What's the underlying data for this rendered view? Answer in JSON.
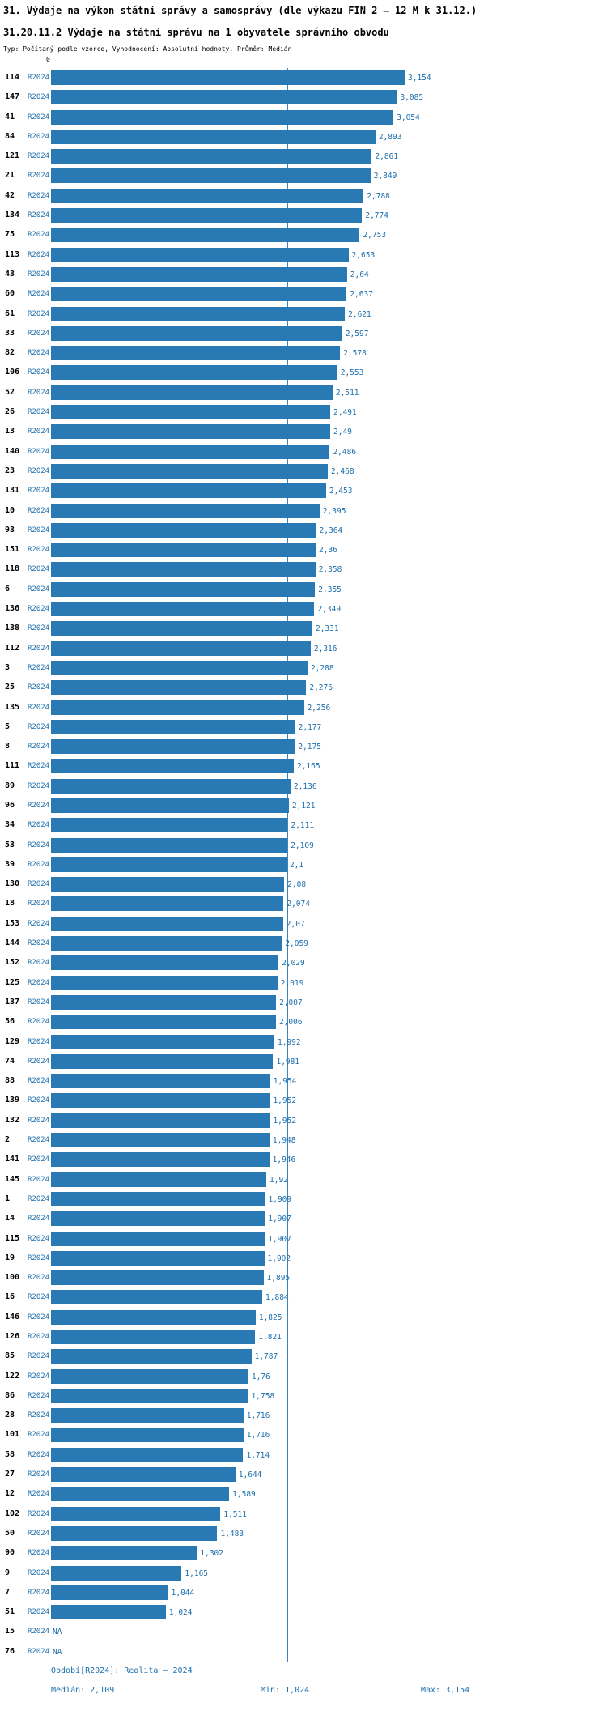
{
  "title": "31. Výdaje na výkon státní správy a samosprávy (dle výkazu FIN 2 – 12 M k 31.12.)",
  "subtitle": "31.20.11.2 Výdaje na státní správu na 1 obyvatele správního obvodu",
  "meta": "Typ: Počítaný podle vzorce, Vyhodnocení: Absolutní hodnoty, Průměr: Medián",
  "axis": {
    "zero_label": "0"
  },
  "colors": {
    "bar": "#2979b5",
    "accent_text": "#1c6fae",
    "median_line": "#3c84bd"
  },
  "chart_data": {
    "type": "bar",
    "orientation": "horizontal",
    "series_label": "R2024",
    "bar_color": "#2979b5",
    "median": 2.109,
    "min": 1.024,
    "max": 3.154,
    "xlim": [
      0,
      3.154
    ],
    "grid": false,
    "legend": "none",
    "rows": [
      {
        "id": "114",
        "value": "3,154"
      },
      {
        "id": "147",
        "value": "3,085"
      },
      {
        "id": "41",
        "value": "3,054"
      },
      {
        "id": "84",
        "value": "2,893"
      },
      {
        "id": "121",
        "value": "2,861"
      },
      {
        "id": "21",
        "value": "2,849"
      },
      {
        "id": "42",
        "value": "2,788"
      },
      {
        "id": "134",
        "value": "2,774"
      },
      {
        "id": "75",
        "value": "2,753"
      },
      {
        "id": "113",
        "value": "2,653"
      },
      {
        "id": "43",
        "value": "2,64"
      },
      {
        "id": "60",
        "value": "2,637"
      },
      {
        "id": "61",
        "value": "2,621"
      },
      {
        "id": "33",
        "value": "2,597"
      },
      {
        "id": "82",
        "value": "2,578"
      },
      {
        "id": "106",
        "value": "2,553"
      },
      {
        "id": "52",
        "value": "2,511"
      },
      {
        "id": "26",
        "value": "2,491"
      },
      {
        "id": "13",
        "value": "2,49"
      },
      {
        "id": "140",
        "value": "2,486"
      },
      {
        "id": "23",
        "value": "2,468"
      },
      {
        "id": "131",
        "value": "2,453"
      },
      {
        "id": "10",
        "value": "2,395"
      },
      {
        "id": "93",
        "value": "2,364"
      },
      {
        "id": "151",
        "value": "2,36"
      },
      {
        "id": "118",
        "value": "2,358"
      },
      {
        "id": "6",
        "value": "2,355"
      },
      {
        "id": "136",
        "value": "2,349"
      },
      {
        "id": "138",
        "value": "2,331"
      },
      {
        "id": "112",
        "value": "2,316"
      },
      {
        "id": "3",
        "value": "2,288"
      },
      {
        "id": "25",
        "value": "2,276"
      },
      {
        "id": "135",
        "value": "2,256"
      },
      {
        "id": "5",
        "value": "2,177"
      },
      {
        "id": "8",
        "value": "2,175"
      },
      {
        "id": "111",
        "value": "2,165"
      },
      {
        "id": "89",
        "value": "2,136"
      },
      {
        "id": "96",
        "value": "2,121"
      },
      {
        "id": "34",
        "value": "2,111"
      },
      {
        "id": "53",
        "value": "2,109"
      },
      {
        "id": "39",
        "value": "2,1"
      },
      {
        "id": "130",
        "value": "2,08"
      },
      {
        "id": "18",
        "value": "2,074"
      },
      {
        "id": "153",
        "value": "2,07"
      },
      {
        "id": "144",
        "value": "2,059"
      },
      {
        "id": "152",
        "value": "2,029"
      },
      {
        "id": "125",
        "value": "2,019"
      },
      {
        "id": "137",
        "value": "2,007"
      },
      {
        "id": "56",
        "value": "2,006"
      },
      {
        "id": "129",
        "value": "1,992"
      },
      {
        "id": "74",
        "value": "1,981"
      },
      {
        "id": "88",
        "value": "1,954"
      },
      {
        "id": "139",
        "value": "1,952"
      },
      {
        "id": "132",
        "value": "1,952"
      },
      {
        "id": "2",
        "value": "1,948"
      },
      {
        "id": "141",
        "value": "1,946"
      },
      {
        "id": "145",
        "value": "1,92"
      },
      {
        "id": "1",
        "value": "1,909"
      },
      {
        "id": "14",
        "value": "1,907"
      },
      {
        "id": "115",
        "value": "1,907"
      },
      {
        "id": "19",
        "value": "1,902"
      },
      {
        "id": "100",
        "value": "1,895"
      },
      {
        "id": "16",
        "value": "1,884"
      },
      {
        "id": "146",
        "value": "1,825"
      },
      {
        "id": "126",
        "value": "1,821"
      },
      {
        "id": "85",
        "value": "1,787"
      },
      {
        "id": "122",
        "value": "1,76"
      },
      {
        "id": "86",
        "value": "1,758"
      },
      {
        "id": "28",
        "value": "1,716"
      },
      {
        "id": "101",
        "value": "1,716"
      },
      {
        "id": "58",
        "value": "1,714"
      },
      {
        "id": "27",
        "value": "1,644"
      },
      {
        "id": "12",
        "value": "1,589"
      },
      {
        "id": "102",
        "value": "1,511"
      },
      {
        "id": "50",
        "value": "1,483"
      },
      {
        "id": "90",
        "value": "1,302"
      },
      {
        "id": "9",
        "value": "1,165"
      },
      {
        "id": "7",
        "value": "1,044"
      },
      {
        "id": "51",
        "value": "1,024"
      },
      {
        "id": "15",
        "value": "NA"
      },
      {
        "id": "76",
        "value": "NA"
      }
    ]
  },
  "footer": {
    "period_line": "Období[R2024]: Realita – 2024",
    "median_label": "Medián: 2,109",
    "min_label": "Min: 1,024",
    "max_label": "Max: 3,154"
  }
}
